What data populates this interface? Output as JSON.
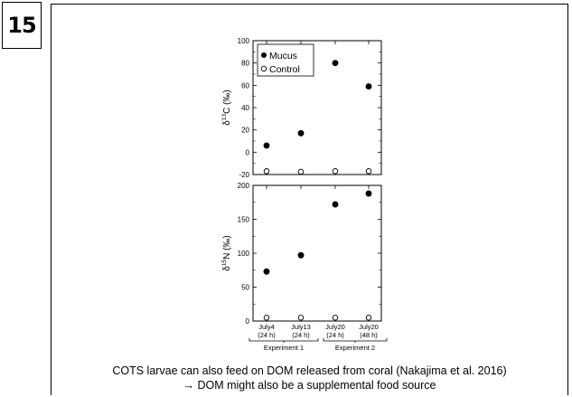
{
  "slide": {
    "number": "15"
  },
  "caption": {
    "line1": "COTS larvae can also feed on DOM released from coral (Nakajima et al. 2016)",
    "line2": "→ DOM might also be a supplemental food source"
  },
  "chart_data": [
    {
      "type": "scatter",
      "ylabel": "δ13C (‰)",
      "ylabel_main": "δ",
      "ylabel_sup": "13",
      "ylabel_rest": "C (‰)",
      "ylim": [
        -20,
        100
      ],
      "yticks": [
        -20,
        0,
        20,
        40,
        60,
        80,
        100
      ],
      "categories": [
        "July4\n(24 h)",
        "July13\n(24 h)",
        "July20\n(24 h)",
        "July20\n(48 h)"
      ],
      "legend": "top-left",
      "series": [
        {
          "name": "Mucus",
          "marker": "filled",
          "values": [
            6,
            17,
            80,
            59
          ]
        },
        {
          "name": "Control",
          "marker": "open",
          "values": [
            -17,
            -17.5,
            -17,
            -17
          ]
        }
      ]
    },
    {
      "type": "scatter",
      "ylabel": "δ15N (‰)",
      "ylabel_main": "δ",
      "ylabel_sup": "15",
      "ylabel_rest": "N (‰)",
      "ylim": [
        0,
        200
      ],
      "yticks": [
        0,
        50,
        100,
        150,
        200
      ],
      "categories": [
        "July4\n(24 h)",
        "July13\n(24 h)",
        "July20\n(24 h)",
        "July20\n(48 h)"
      ],
      "x_tick_labels": [
        {
          "line1": "July4",
          "line2": "(24 h)"
        },
        {
          "line1": "July13",
          "line2": "(24 h)"
        },
        {
          "line1": "July20",
          "line2": "(24 h)"
        },
        {
          "line1": "July20",
          "line2": "(48 h)"
        }
      ],
      "groups": [
        {
          "label": "Experiment 1",
          "categories": [
            0,
            1
          ]
        },
        {
          "label": "Experiment 2",
          "categories": [
            2,
            3
          ]
        }
      ],
      "series": [
        {
          "name": "Mucus",
          "marker": "filled",
          "values": [
            73,
            97,
            172,
            188
          ]
        },
        {
          "name": "Control",
          "marker": "open",
          "values": [
            5,
            5,
            5,
            5
          ]
        }
      ]
    }
  ]
}
